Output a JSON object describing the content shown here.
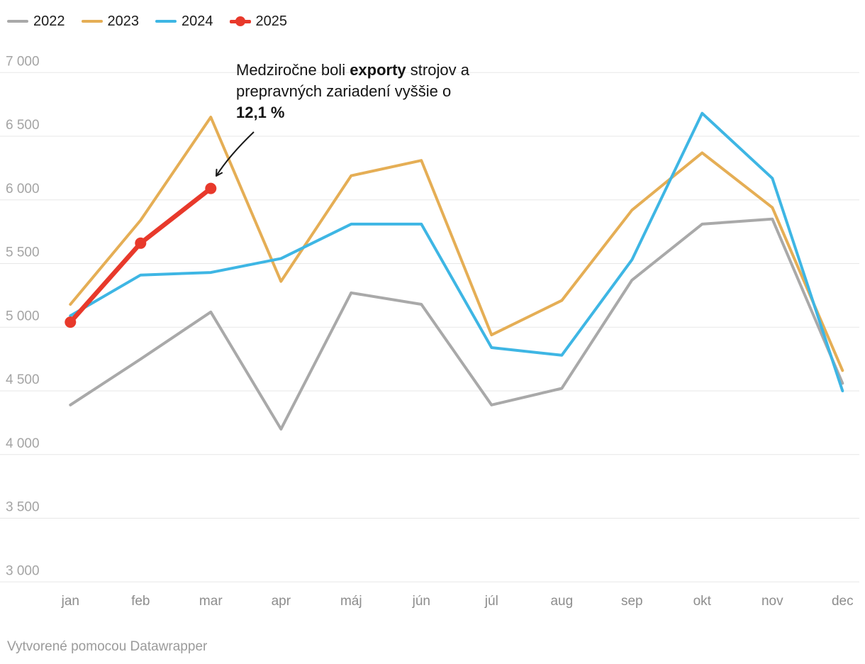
{
  "chart_data": {
    "type": "line",
    "categories": [
      "jan",
      "feb",
      "mar",
      "apr",
      "máj",
      "jún",
      "júl",
      "aug",
      "sep",
      "okt",
      "nov",
      "dec"
    ],
    "series": [
      {
        "name": "2022",
        "color": "#a9a9a9",
        "line_width": 4,
        "markers": false,
        "values": [
          4390,
          4750,
          5120,
          4200,
          5270,
          5180,
          4390,
          4520,
          5370,
          5810,
          5850,
          4560
        ]
      },
      {
        "name": "2023",
        "color": "#e5ae55",
        "line_width": 4,
        "markers": false,
        "values": [
          5180,
          5840,
          6650,
          5360,
          6190,
          6310,
          4940,
          5210,
          5920,
          6370,
          5940,
          4660
        ]
      },
      {
        "name": "2024",
        "color": "#3eb6e4",
        "line_width": 4,
        "markers": false,
        "values": [
          5090,
          5410,
          5430,
          5540,
          5810,
          5810,
          4840,
          4780,
          5530,
          6680,
          6170,
          4500
        ]
      },
      {
        "name": "2025",
        "color": "#e8392b",
        "line_width": 6.5,
        "markers": true,
        "marker_radius": 8,
        "values": [
          5040,
          5660,
          6090,
          null,
          null,
          null,
          null,
          null,
          null,
          null,
          null,
          null
        ]
      }
    ],
    "title": "",
    "xlabel": "",
    "ylabel": "",
    "ylim": [
      3000,
      7000
    ],
    "yticks": [
      {
        "value": 7000,
        "label": "7 000"
      },
      {
        "value": 6500,
        "label": "6 500"
      },
      {
        "value": 6000,
        "label": "6 000"
      },
      {
        "value": 5500,
        "label": "5 500"
      },
      {
        "value": 5000,
        "label": "5 000"
      },
      {
        "value": 4500,
        "label": "4 500"
      },
      {
        "value": 4000,
        "label": "4 000"
      },
      {
        "value": 3500,
        "label": "3 500"
      },
      {
        "value": 3000,
        "label": "3 000"
      }
    ],
    "grid": true,
    "legend_position": "top-left"
  },
  "annotation": {
    "lines": [
      [
        {
          "text": "Medziročne boli ",
          "bold": false
        },
        {
          "text": "exporty",
          "bold": true
        },
        {
          "text": " strojov a",
          "bold": false
        }
      ],
      [
        {
          "text": "prepravných zariadení vyššie o",
          "bold": false
        }
      ],
      [
        {
          "text": "12,1 %",
          "bold": true
        }
      ]
    ],
    "arrow": {
      "from_x": 358,
      "from_y": 186,
      "to_x": 305,
      "to_y": 248,
      "color": "#1a1a1a"
    }
  },
  "footer": {
    "credit": "Vytvorené pomocou Datawrapper"
  }
}
